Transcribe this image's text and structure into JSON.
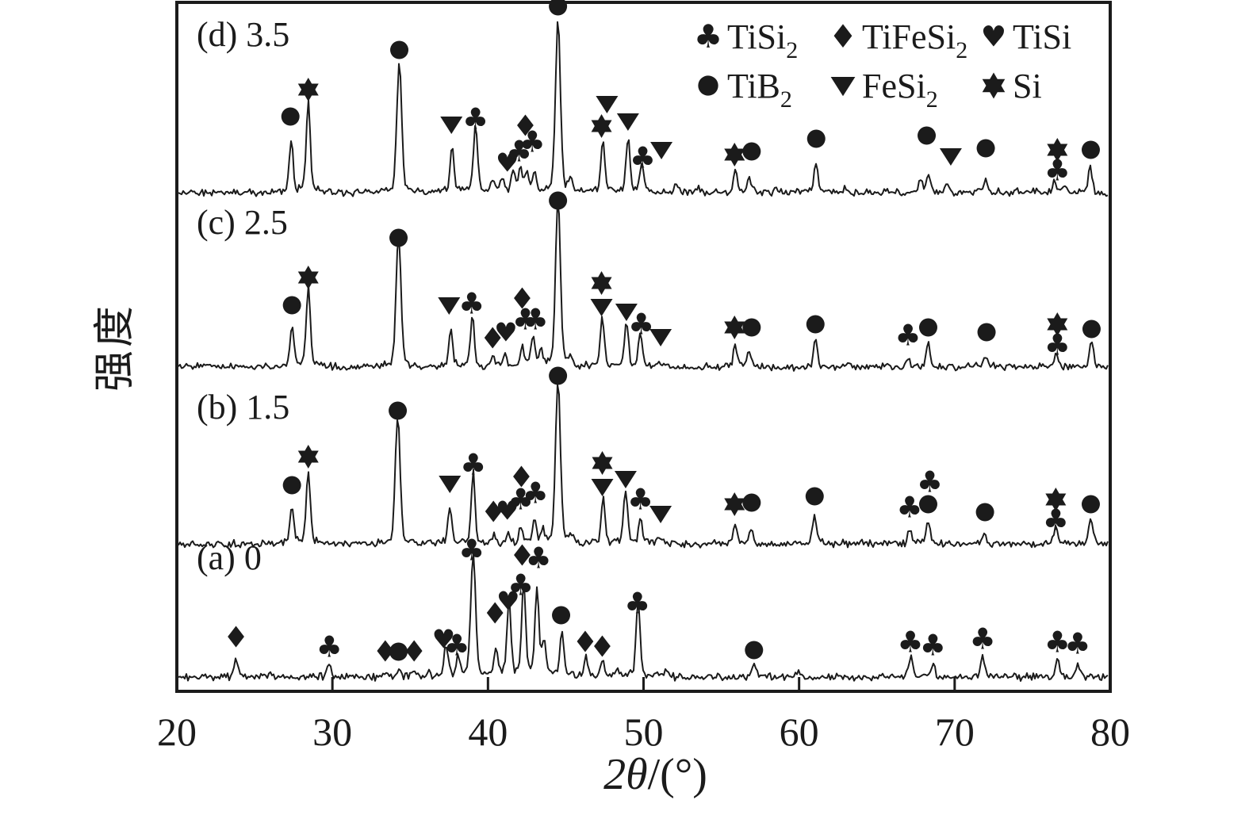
{
  "figure": {
    "background": "#ffffff",
    "ink": "#1b1b1b"
  },
  "chart_data": {
    "type": "line",
    "subtype": "xrd_stacked_patterns",
    "title": "",
    "xlabel": "2θ/(°)",
    "xlabel_parts": [
      {
        "text": "2θ",
        "italic": true
      },
      {
        "text": "/(°)",
        "italic": false
      }
    ],
    "ylabel": "强度",
    "xlim": [
      20,
      80
    ],
    "x_ticks": [
      20,
      30,
      40,
      50,
      60,
      70,
      80
    ],
    "y_ticks": [],
    "grid": false,
    "legend": {
      "position": "top-right-inside",
      "rows": 2,
      "items": [
        {
          "symbol": "club",
          "label": "TiSi",
          "subscript": "2"
        },
        {
          "symbol": "diamond",
          "label": "TiFeSi",
          "subscript": "2"
        },
        {
          "symbol": "heart",
          "label": "TiSi",
          "subscript": ""
        },
        {
          "symbol": "circle",
          "label": "TiB",
          "subscript": "2"
        },
        {
          "symbol": "triangle-down",
          "label": "FeSi",
          "subscript": "2"
        },
        {
          "symbol": "star6",
          "label": "Si",
          "subscript": ""
        }
      ]
    },
    "series": [
      {
        "label": "(d) 3.5",
        "peaks": [
          [
            27.35,
            58
          ],
          [
            28.45,
            105
          ],
          [
            34.3,
            150
          ],
          [
            37.7,
            52
          ],
          [
            39.2,
            78
          ],
          [
            40.3,
            14
          ],
          [
            40.9,
            16
          ],
          [
            41.6,
            22
          ],
          [
            42.1,
            28
          ],
          [
            42.5,
            20
          ],
          [
            43.0,
            18
          ],
          [
            44.5,
            200
          ],
          [
            45.3,
            15
          ],
          [
            47.4,
            58
          ],
          [
            49.0,
            62
          ],
          [
            49.9,
            32
          ],
          [
            52.1,
            8
          ],
          [
            53.5,
            6
          ],
          [
            55.9,
            26
          ],
          [
            56.8,
            18
          ],
          [
            58.5,
            6
          ],
          [
            61.1,
            36
          ],
          [
            63.0,
            5
          ],
          [
            65.6,
            6
          ],
          [
            67.8,
            14
          ],
          [
            68.3,
            22
          ],
          [
            69.5,
            8
          ],
          [
            72.0,
            14
          ],
          [
            74.0,
            5
          ],
          [
            76.4,
            12
          ],
          [
            77.1,
            8
          ],
          [
            78.7,
            28
          ]
        ],
        "markers": [
          {
            "sym": "circle",
            "x": 27.3,
            "dy": 98
          },
          {
            "sym": "star6",
            "x": 28.45,
            "dy": 132
          },
          {
            "sym": "circle",
            "x": 34.3,
            "dy": 182
          },
          {
            "sym": "triangle-down",
            "x": 37.65,
            "dy": 88
          },
          {
            "sym": "club",
            "x": 39.2,
            "dy": 95
          },
          {
            "sym": "heart",
            "x": 41.25,
            "dy": 40
          },
          {
            "sym": "club",
            "x": 42.0,
            "dy": 54
          },
          {
            "sym": "club",
            "x": 42.85,
            "dy": 66
          },
          {
            "sym": "diamond",
            "x": 42.4,
            "dy": 86
          },
          {
            "sym": "circle",
            "x": 44.5,
            "dy": 237
          },
          {
            "sym": "star6",
            "x": 47.3,
            "dy": 86
          },
          {
            "sym": "triangle-down",
            "x": 47.65,
            "dy": 114
          },
          {
            "sym": "triangle-down",
            "x": 49.0,
            "dy": 92
          },
          {
            "sym": "club",
            "x": 49.95,
            "dy": 46
          },
          {
            "sym": "triangle-down",
            "x": 51.15,
            "dy": 56
          },
          {
            "sym": "star6",
            "x": 55.85,
            "dy": 50
          },
          {
            "sym": "circle",
            "x": 56.95,
            "dy": 54
          },
          {
            "sym": "circle",
            "x": 61.1,
            "dy": 70
          },
          {
            "sym": "circle",
            "x": 68.2,
            "dy": 74
          },
          {
            "sym": "triangle-down",
            "x": 69.75,
            "dy": 48
          },
          {
            "sym": "circle",
            "x": 72.0,
            "dy": 58
          },
          {
            "sym": "star6",
            "x": 76.6,
            "dy": 56
          },
          {
            "sym": "club",
            "x": 76.6,
            "dy": 30
          },
          {
            "sym": "circle",
            "x": 78.75,
            "dy": 56
          }
        ]
      },
      {
        "label": "(c) 2.5",
        "peaks": [
          [
            27.4,
            48
          ],
          [
            28.45,
            92
          ],
          [
            34.25,
            152
          ],
          [
            37.6,
            44
          ],
          [
            39.0,
            58
          ],
          [
            40.3,
            10
          ],
          [
            41.1,
            14
          ],
          [
            42.2,
            24
          ],
          [
            42.9,
            32
          ],
          [
            43.4,
            18
          ],
          [
            44.5,
            195
          ],
          [
            45.3,
            12
          ],
          [
            47.35,
            58
          ],
          [
            48.9,
            52
          ],
          [
            49.8,
            38
          ],
          [
            51.0,
            8
          ],
          [
            55.9,
            24
          ],
          [
            56.8,
            16
          ],
          [
            61.05,
            34
          ],
          [
            63.0,
            5
          ],
          [
            67.0,
            12
          ],
          [
            68.3,
            28
          ],
          [
            72.0,
            11
          ],
          [
            76.5,
            16
          ],
          [
            78.8,
            32
          ]
        ],
        "markers": [
          {
            "sym": "circle",
            "x": 27.4,
            "dy": 80
          },
          {
            "sym": "star6",
            "x": 28.45,
            "dy": 115
          },
          {
            "sym": "circle",
            "x": 34.25,
            "dy": 165
          },
          {
            "sym": "triangle-down",
            "x": 37.5,
            "dy": 80
          },
          {
            "sym": "club",
            "x": 38.95,
            "dy": 82
          },
          {
            "sym": "diamond",
            "x": 40.3,
            "dy": 38
          },
          {
            "sym": "heart",
            "x": 41.15,
            "dy": 46
          },
          {
            "sym": "diamond",
            "x": 42.2,
            "dy": 88
          },
          {
            "sym": "club",
            "x": 42.4,
            "dy": 62
          },
          {
            "sym": "club",
            "x": 43.05,
            "dy": 62
          },
          {
            "sym": "circle",
            "x": 44.5,
            "dy": 212
          },
          {
            "sym": "star6",
            "x": 47.3,
            "dy": 108
          },
          {
            "sym": "triangle-down",
            "x": 47.3,
            "dy": 78
          },
          {
            "sym": "triangle-down",
            "x": 48.9,
            "dy": 72
          },
          {
            "sym": "club",
            "x": 49.85,
            "dy": 56
          },
          {
            "sym": "triangle-down",
            "x": 51.1,
            "dy": 40
          },
          {
            "sym": "star6",
            "x": 55.85,
            "dy": 52
          },
          {
            "sym": "circle",
            "x": 56.95,
            "dy": 52
          },
          {
            "sym": "circle",
            "x": 61.05,
            "dy": 56
          },
          {
            "sym": "club",
            "x": 67.0,
            "dy": 42
          },
          {
            "sym": "circle",
            "x": 68.3,
            "dy": 52
          },
          {
            "sym": "circle",
            "x": 72.05,
            "dy": 46
          },
          {
            "sym": "star6",
            "x": 76.6,
            "dy": 56
          },
          {
            "sym": "club",
            "x": 76.6,
            "dy": 30
          },
          {
            "sym": "circle",
            "x": 78.8,
            "dy": 50
          }
        ]
      },
      {
        "label": "(b) 1.5",
        "peaks": [
          [
            27.4,
            42
          ],
          [
            28.45,
            85
          ],
          [
            34.2,
            148
          ],
          [
            37.55,
            42
          ],
          [
            39.05,
            82
          ],
          [
            40.4,
            10
          ],
          [
            41.3,
            12
          ],
          [
            42.1,
            18
          ],
          [
            43.0,
            28
          ],
          [
            43.5,
            14
          ],
          [
            44.5,
            188
          ],
          [
            45.3,
            12
          ],
          [
            47.4,
            52
          ],
          [
            48.85,
            62
          ],
          [
            49.8,
            28
          ],
          [
            51.0,
            8
          ],
          [
            55.9,
            22
          ],
          [
            56.9,
            16
          ],
          [
            61.0,
            32
          ],
          [
            64.0,
            5
          ],
          [
            67.1,
            18
          ],
          [
            68.3,
            26
          ],
          [
            71.9,
            12
          ],
          [
            76.5,
            20
          ],
          [
            78.75,
            30
          ]
        ],
        "markers": [
          {
            "sym": "circle",
            "x": 27.4,
            "dy": 76
          },
          {
            "sym": "star6",
            "x": 28.45,
            "dy": 112
          },
          {
            "sym": "circle",
            "x": 34.2,
            "dy": 170
          },
          {
            "sym": "triangle-down",
            "x": 37.55,
            "dy": 78
          },
          {
            "sym": "club",
            "x": 39.05,
            "dy": 102
          },
          {
            "sym": "diamond",
            "x": 40.35,
            "dy": 42
          },
          {
            "sym": "heart",
            "x": 41.25,
            "dy": 44
          },
          {
            "sym": "club",
            "x": 42.1,
            "dy": 58
          },
          {
            "sym": "diamond",
            "x": 42.15,
            "dy": 86
          },
          {
            "sym": "club",
            "x": 43.05,
            "dy": 66
          },
          {
            "sym": "circle",
            "x": 44.5,
            "dy": 214
          },
          {
            "sym": "star6",
            "x": 47.35,
            "dy": 104
          },
          {
            "sym": "triangle-down",
            "x": 47.35,
            "dy": 74
          },
          {
            "sym": "triangle-down",
            "x": 48.85,
            "dy": 84
          },
          {
            "sym": "club",
            "x": 49.8,
            "dy": 58
          },
          {
            "sym": "triangle-down",
            "x": 51.1,
            "dy": 40
          },
          {
            "sym": "star6",
            "x": 55.85,
            "dy": 52
          },
          {
            "sym": "circle",
            "x": 56.95,
            "dy": 54
          },
          {
            "sym": "circle",
            "x": 61.0,
            "dy": 62
          },
          {
            "sym": "club",
            "x": 67.1,
            "dy": 48
          },
          {
            "sym": "circle",
            "x": 68.3,
            "dy": 52
          },
          {
            "sym": "club",
            "x": 68.4,
            "dy": 80
          },
          {
            "sym": "circle",
            "x": 71.95,
            "dy": 42
          },
          {
            "sym": "star6",
            "x": 76.5,
            "dy": 58
          },
          {
            "sym": "club",
            "x": 76.5,
            "dy": 32
          },
          {
            "sym": "circle",
            "x": 78.75,
            "dy": 52
          }
        ]
      },
      {
        "label": "(a) 0",
        "peaks": [
          [
            23.8,
            22
          ],
          [
            26.0,
            6
          ],
          [
            29.8,
            16
          ],
          [
            33.4,
            8
          ],
          [
            34.3,
            9
          ],
          [
            35.2,
            8
          ],
          [
            36.2,
            6
          ],
          [
            37.3,
            38
          ],
          [
            38.1,
            22
          ],
          [
            39.05,
            142
          ],
          [
            40.5,
            30
          ],
          [
            41.35,
            85
          ],
          [
            42.3,
            108
          ],
          [
            43.15,
            98
          ],
          [
            43.6,
            40
          ],
          [
            44.75,
            52
          ],
          [
            46.3,
            22
          ],
          [
            47.35,
            18
          ],
          [
            48.3,
            8
          ],
          [
            49.65,
            92
          ],
          [
            51.5,
            6
          ],
          [
            57.1,
            14
          ],
          [
            60.0,
            5
          ],
          [
            67.2,
            24
          ],
          [
            68.6,
            16
          ],
          [
            71.8,
            26
          ],
          [
            76.6,
            20
          ],
          [
            77.9,
            14
          ]
        ],
        "markers": [
          {
            "sym": "diamond",
            "x": 23.8,
            "dy": 52
          },
          {
            "sym": "club",
            "x": 29.8,
            "dy": 40
          },
          {
            "sym": "diamond",
            "x": 33.4,
            "dy": 34
          },
          {
            "sym": "circle",
            "x": 34.25,
            "dy": 34
          },
          {
            "sym": "diamond",
            "x": 35.25,
            "dy": 34
          },
          {
            "sym": "heart",
            "x": 37.15,
            "dy": 50
          },
          {
            "sym": "club",
            "x": 38.0,
            "dy": 42
          },
          {
            "sym": "club",
            "x": 38.95,
            "dy": 162
          },
          {
            "sym": "diamond",
            "x": 40.45,
            "dy": 82
          },
          {
            "sym": "heart",
            "x": 41.3,
            "dy": 98
          },
          {
            "sym": "club",
            "x": 42.1,
            "dy": 118
          },
          {
            "sym": "diamond",
            "x": 42.2,
            "dy": 155
          },
          {
            "sym": "club",
            "x": 43.25,
            "dy": 152
          },
          {
            "sym": "circle",
            "x": 44.7,
            "dy": 80
          },
          {
            "sym": "diamond",
            "x": 46.25,
            "dy": 46
          },
          {
            "sym": "diamond",
            "x": 47.35,
            "dy": 40
          },
          {
            "sym": "club",
            "x": 49.6,
            "dy": 95
          },
          {
            "sym": "circle",
            "x": 57.1,
            "dy": 36
          },
          {
            "sym": "club",
            "x": 67.15,
            "dy": 46
          },
          {
            "sym": "club",
            "x": 68.6,
            "dy": 42
          },
          {
            "sym": "club",
            "x": 71.8,
            "dy": 50
          },
          {
            "sym": "club",
            "x": 76.6,
            "dy": 46
          },
          {
            "sym": "club",
            "x": 77.9,
            "dy": 44
          }
        ]
      }
    ]
  }
}
